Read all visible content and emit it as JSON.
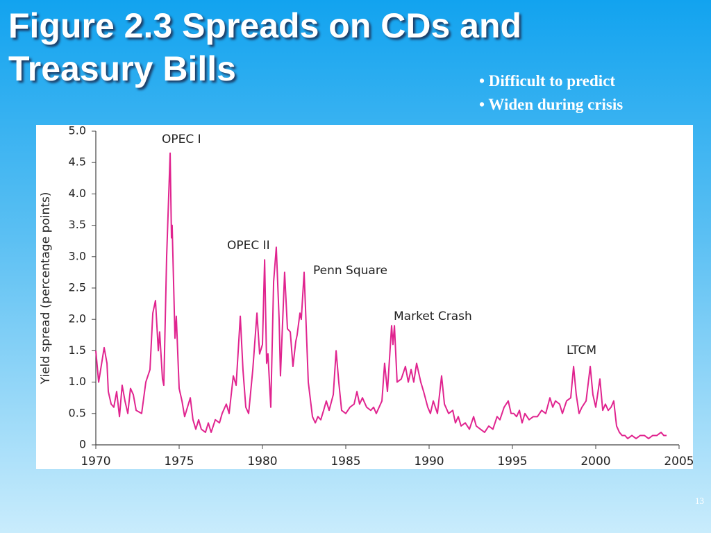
{
  "slide": {
    "title": "Figure 2.3 Spreads on CDs and Treasury Bills",
    "bullets": [
      "• Difficult to predict",
      "• Widen during crisis"
    ],
    "page_number": "13"
  },
  "chart_data": {
    "type": "line",
    "y_label": "Yield spread (percentage points)",
    "annotations": [
      "OPEC I",
      "OPEC II",
      "Penn Square",
      "Market Crash",
      "LTCM"
    ],
    "xlim": [
      1970,
      2005
    ],
    "xticks": [
      1970,
      1975,
      1980,
      1985,
      1990,
      1995,
      2000,
      2005
    ],
    "ylim": [
      0,
      5
    ],
    "yticks": [
      0,
      0.5,
      {
        "value": 1,
        "label": "1.0"
      },
      1.5,
      {
        "value": 2,
        "label": "2.0"
      },
      2.5,
      {
        "value": 3,
        "label": "3.0"
      },
      3.5,
      {
        "value": 4,
        "label": "4.0"
      },
      4.5,
      {
        "value": 5,
        "label": "5.0"
      }
    ],
    "color": "#e0248f",
    "x": [
      1970.0,
      1970.17,
      1970.5,
      1970.67,
      1970.75,
      1970.92,
      1971.08,
      1971.25,
      1971.42,
      1971.58,
      1971.75,
      1971.92,
      1972.08,
      1972.25,
      1972.42,
      1972.75,
      1973.0,
      1973.25,
      1973.42,
      1973.58,
      1973.75,
      1973.83,
      1974.0,
      1974.08,
      1974.25,
      1974.46,
      1974.54,
      1974.58,
      1974.75,
      1974.83,
      1975.0,
      1975.17,
      1975.33,
      1975.5,
      1975.67,
      1975.83,
      1976.0,
      1976.17,
      1976.33,
      1976.58,
      1976.75,
      1976.92,
      1977.17,
      1977.42,
      1977.58,
      1977.83,
      1978.0,
      1978.25,
      1978.42,
      1978.67,
      1978.83,
      1979.0,
      1979.17,
      1979.42,
      1979.67,
      1979.83,
      1980.0,
      1980.13,
      1980.25,
      1980.33,
      1980.5,
      1980.67,
      1980.83,
      1981.0,
      1981.08,
      1981.33,
      1981.5,
      1981.67,
      1981.83,
      1982.0,
      1982.08,
      1982.25,
      1982.33,
      1982.5,
      1982.58,
      1982.75,
      1983.0,
      1983.17,
      1983.33,
      1983.5,
      1983.67,
      1983.83,
      1984.0,
      1984.25,
      1984.42,
      1984.58,
      1984.75,
      1985.0,
      1985.25,
      1985.5,
      1985.67,
      1985.83,
      1986.0,
      1986.25,
      1986.5,
      1986.67,
      1986.83,
      1987.0,
      1987.17,
      1987.33,
      1987.5,
      1987.75,
      1987.83,
      1987.92,
      1988.08,
      1988.33,
      1988.58,
      1988.75,
      1988.92,
      1989.08,
      1989.25,
      1989.5,
      1989.67,
      1989.92,
      1990.08,
      1990.25,
      1990.5,
      1990.75,
      1990.92,
      1991.17,
      1991.42,
      1991.58,
      1991.75,
      1991.92,
      1992.17,
      1992.42,
      1992.67,
      1992.83,
      1993.08,
      1993.33,
      1993.58,
      1993.83,
      1994.08,
      1994.25,
      1994.5,
      1994.75,
      1994.92,
      1995.08,
      1995.25,
      1995.42,
      1995.58,
      1995.75,
      1996.0,
      1996.25,
      1996.5,
      1996.75,
      1997.0,
      1997.25,
      1997.42,
      1997.58,
      1997.83,
      1998.0,
      1998.25,
      1998.5,
      1998.67,
      1998.83,
      1999.0,
      1999.17,
      1999.42,
      1999.67,
      1999.83,
      2000.0,
      2000.25,
      2000.42,
      2000.58,
      2000.75,
      2000.92,
      2001.08,
      2001.25,
      2001.42,
      2001.58,
      2001.75,
      2001.92,
      2002.17,
      2002.42,
      2002.67,
      2002.92,
      2003.17,
      2003.42,
      2003.67,
      2003.92,
      2004.08,
      2004.25
    ],
    "values": [
      1.5,
      1.0,
      1.55,
      1.3,
      0.85,
      0.65,
      0.6,
      0.85,
      0.45,
      0.95,
      0.7,
      0.5,
      0.9,
      0.8,
      0.55,
      0.5,
      1.0,
      1.2,
      2.1,
      2.3,
      1.5,
      1.8,
      1.05,
      0.95,
      3.0,
      4.65,
      3.3,
      3.5,
      1.7,
      2.05,
      0.9,
      0.7,
      0.45,
      0.6,
      0.75,
      0.4,
      0.25,
      0.4,
      0.25,
      0.2,
      0.35,
      0.2,
      0.4,
      0.35,
      0.5,
      0.65,
      0.5,
      1.1,
      0.95,
      2.05,
      1.2,
      0.6,
      0.5,
      1.2,
      2.1,
      1.45,
      1.6,
      2.95,
      1.3,
      1.45,
      0.6,
      2.6,
      3.15,
      2.0,
      1.1,
      2.75,
      1.85,
      1.8,
      1.25,
      1.65,
      1.75,
      2.1,
      2.0,
      2.75,
      2.2,
      1.0,
      0.45,
      0.35,
      0.45,
      0.4,
      0.55,
      0.7,
      0.55,
      0.8,
      1.5,
      1.0,
      0.55,
      0.5,
      0.6,
      0.65,
      0.85,
      0.65,
      0.75,
      0.6,
      0.55,
      0.6,
      0.5,
      0.6,
      0.7,
      1.3,
      0.85,
      1.9,
      1.6,
      1.9,
      1.0,
      1.05,
      1.25,
      1.0,
      1.2,
      1.0,
      1.3,
      1.0,
      0.85,
      0.6,
      0.5,
      0.7,
      0.5,
      1.1,
      0.65,
      0.5,
      0.55,
      0.35,
      0.45,
      0.3,
      0.35,
      0.25,
      0.45,
      0.3,
      0.25,
      0.2,
      0.3,
      0.25,
      0.45,
      0.4,
      0.6,
      0.7,
      0.5,
      0.5,
      0.45,
      0.55,
      0.35,
      0.5,
      0.4,
      0.45,
      0.45,
      0.55,
      0.5,
      0.75,
      0.6,
      0.7,
      0.65,
      0.5,
      0.7,
      0.75,
      1.25,
      0.8,
      0.5,
      0.6,
      0.7,
      1.25,
      0.8,
      0.6,
      1.05,
      0.55,
      0.65,
      0.55,
      0.6,
      0.7,
      0.3,
      0.2,
      0.15,
      0.15,
      0.1,
      0.15,
      0.1,
      0.15,
      0.15,
      0.1,
      0.15,
      0.15,
      0.2,
      0.15,
      0.15
    ]
  }
}
